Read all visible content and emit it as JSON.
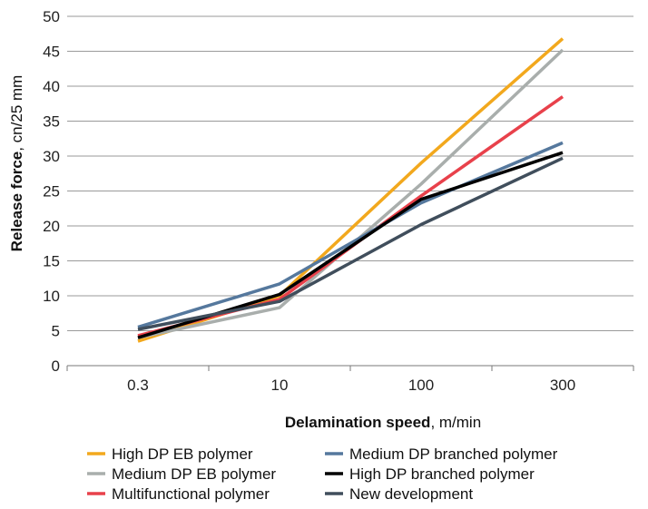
{
  "chart_data": {
    "type": "line",
    "categories": [
      "0.3",
      "10",
      "100",
      "300"
    ],
    "x_axis": {
      "label_bold": "Delamination speed",
      "label_rest": ", m/min"
    },
    "y_axis": {
      "label_bold": "Release force",
      "label_rest": ", cn/25 mm",
      "min": 0,
      "max": 50,
      "ticks": [
        "0",
        "5",
        "10",
        "15",
        "20",
        "25",
        "30",
        "35",
        "40",
        "45",
        "50"
      ]
    },
    "grid": "horizontal",
    "legend_position": "bottom",
    "series": [
      {
        "name": "High DP EB polymer",
        "color": "#F2A81D",
        "values": [
          3.5,
          10.0,
          29.0,
          46.8
        ]
      },
      {
        "name": "Medium DP EB polymer",
        "color": "#A9AEAC",
        "values": [
          4.0,
          8.3,
          26.0,
          45.2
        ]
      },
      {
        "name": "Multifunctional polymer",
        "color": "#E8414B",
        "values": [
          4.3,
          9.5,
          24.3,
          38.5
        ]
      },
      {
        "name": "Medium DP branched polymer",
        "color": "#55789D",
        "values": [
          5.5,
          11.7,
          23.3,
          31.9
        ]
      },
      {
        "name": "High DP branched polymer",
        "color": "#000000",
        "values": [
          4.0,
          10.2,
          23.8,
          30.5
        ]
      },
      {
        "name": "New development",
        "color": "#404E5C",
        "values": [
          5.2,
          9.2,
          20.2,
          29.7
        ]
      }
    ]
  }
}
